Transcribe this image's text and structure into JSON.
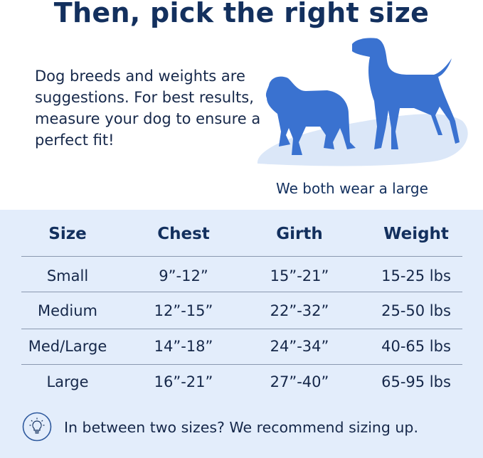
{
  "title": "Then, pick the right size",
  "intro": "Dog breeds and weights are suggestions. For best results, measure your dog to ensure a perfect fit!",
  "caption": "We both wear a large",
  "colors": {
    "navy": "#13305e",
    "dog_blue": "#3a72d0",
    "panel": "#e3edfb"
  },
  "table": {
    "headers": [
      "Size",
      "Chest",
      "Girth",
      "Weight"
    ],
    "rows": [
      [
        "Small",
        "9”-12”",
        "15”-21”",
        "15-25 lbs"
      ],
      [
        "Medium",
        "12”-15”",
        "22”-32”",
        "25-50 lbs"
      ],
      [
        "Med/Large",
        "14”-18”",
        "24”-34”",
        "40-65 lbs"
      ],
      [
        "Large",
        "16”-21”",
        "27”-40”",
        "65-95 lbs"
      ]
    ]
  },
  "footer": {
    "icon": "lightbulb-icon",
    "text": "In between two sizes? We recommend sizing up."
  }
}
